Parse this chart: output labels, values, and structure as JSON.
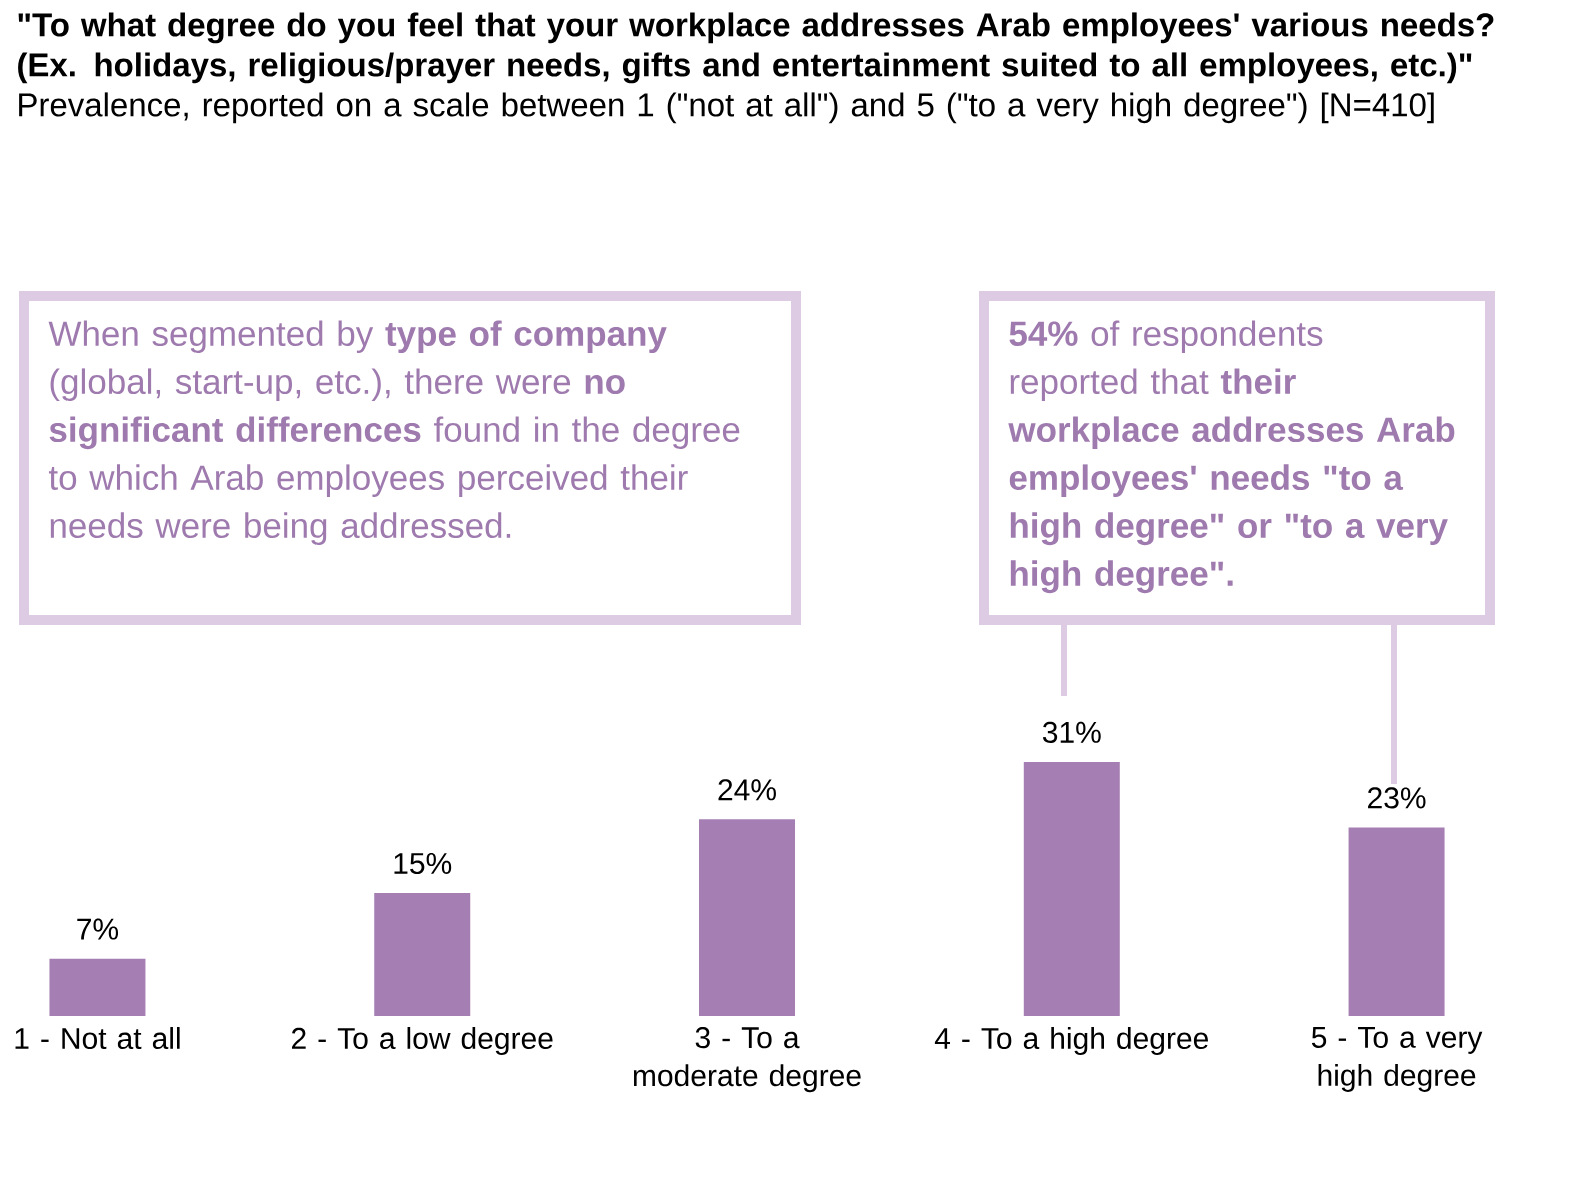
{
  "chart_data": {
    "type": "bar",
    "title": "**\"To what degree do you feel that your workplace addresses Arab employees' various needs? (Ex. holidays, religious/prayer needs, gifts and entertainment suited to all employees, etc.)\"** Prevalence, reported on a scale between 1 (\"not at all\") and 5 (\"to a very high degree\") [N=410]",
    "categories": [
      "1 - Not at all",
      "2 - To a low degree",
      "3 - To a moderate degree",
      "4 - To a high degree",
      "5 - To a very high degree"
    ],
    "values": [
      7,
      15,
      24,
      31,
      23
    ],
    "value_labels": [
      "7%",
      "15%",
      "24%",
      "31%",
      "23%"
    ],
    "color": "#a57fb3",
    "annotations": [
      "When segmented by **type of company** (global, start-up, etc.), there were **no significant differences** found in the degree to which Arab employees perceived their needs were being addressed.",
      "**54%** of respondents reported that **their workplace addresses Arab employees' needs \"to a high degree\" or \"to a very high degree\".**"
    ]
  }
}
